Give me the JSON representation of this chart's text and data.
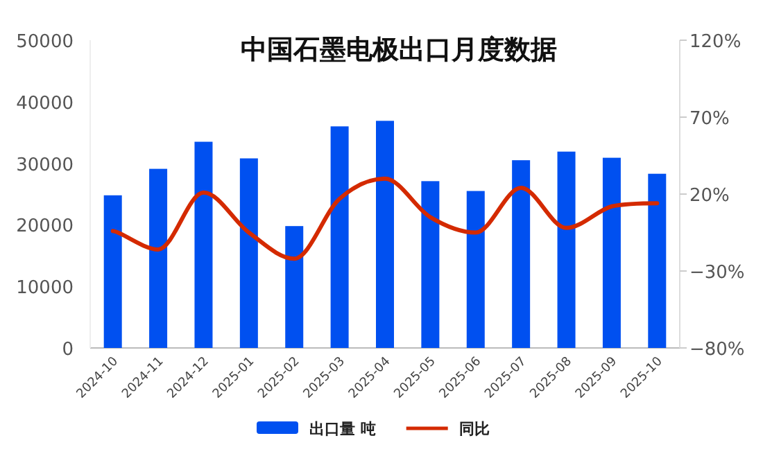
{
  "chart_data": {
    "type": "bar",
    "title": "中国石墨电极出口月度数据",
    "categories": [
      "2024-10",
      "2024-11",
      "2024-12",
      "2025-01",
      "2025-02",
      "2025-03",
      "2025-04",
      "2025-05",
      "2025-06",
      "2025-07",
      "2025-08",
      "2025-09",
      "2025-10"
    ],
    "series": [
      {
        "name": "出口量 吨",
        "color": "#0050f0",
        "values": [
          24800,
          29100,
          33500,
          30800,
          19800,
          36000,
          36900,
          27100,
          25500,
          30500,
          31900,
          30900,
          28300
        ]
      },
      {
        "name": "同比",
        "type": "line",
        "axis": "y2",
        "color": "#d42a00",
        "values": [
          -4,
          -16,
          21,
          -5,
          -22,
          17,
          30,
          5,
          -5,
          24,
          -2,
          12,
          14
        ]
      }
    ],
    "ylim": [
      0,
      50000
    ],
    "yticks": [
      0,
      10000,
      20000,
      30000,
      40000,
      50000
    ],
    "y2lim": [
      -80,
      120
    ],
    "y2ticks": [
      {
        "value": -80,
        "label": "−80%"
      },
      {
        "value": -30,
        "label": "−30%"
      },
      {
        "value": 20,
        "label": "20%"
      },
      {
        "value": 70,
        "label": "70%"
      },
      {
        "value": 120,
        "label": "120%"
      }
    ],
    "grid": false,
    "legend": "bottom"
  }
}
